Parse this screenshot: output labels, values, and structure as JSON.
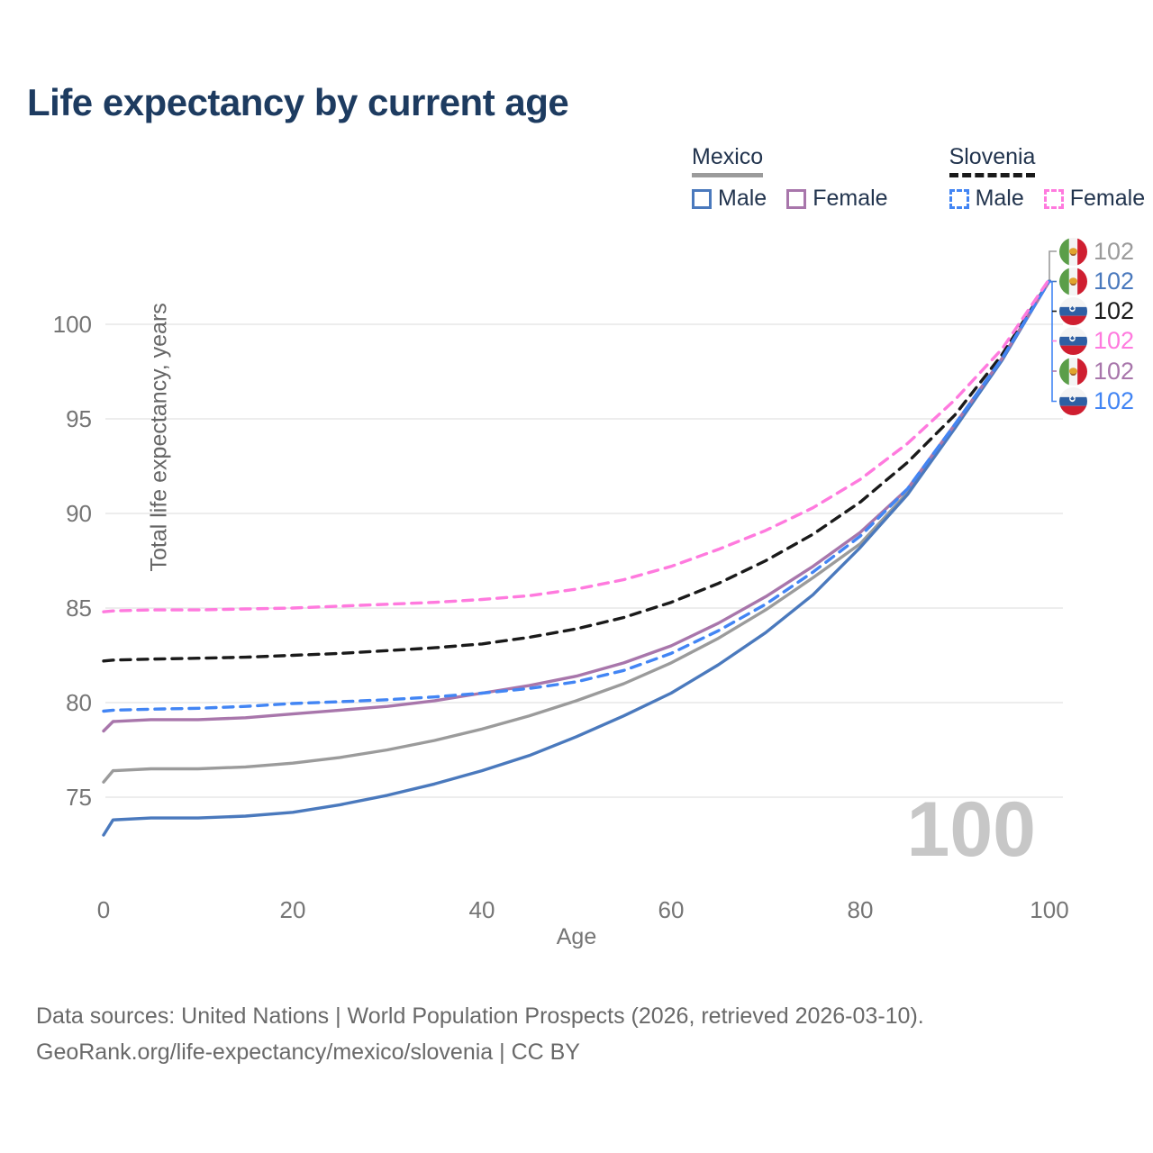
{
  "title": "Life expectancy by current age",
  "legend": {
    "groups": [
      {
        "name": "Mexico",
        "underline_style": "solid",
        "underline_color": "#9b9b9b",
        "items": [
          {
            "label": "Male",
            "color": "#4a79bd",
            "dash": false
          },
          {
            "label": "Female",
            "color": "#a876ab",
            "dash": false
          }
        ]
      },
      {
        "name": "Slovenia",
        "underline_style": "dashed",
        "underline_color": "#1a1a1a",
        "items": [
          {
            "label": "Male",
            "color": "#4285f4",
            "dash": true
          },
          {
            "label": "Female",
            "color": "#ff7ade",
            "dash": true
          }
        ]
      }
    ]
  },
  "watermark": "100",
  "footer": {
    "line1": "Data sources: United Nations | World Population Prospects (2026, retrieved 2026-03-10).",
    "line2": "GeoRank.org/life-expectancy/mexico/slovenia | CC BY"
  },
  "colors": {
    "title": "#1d3b60",
    "axis_text": "#757575",
    "grid": "#e7e7e7",
    "watermark": "#c7c7c7",
    "legend_text": "#22344e"
  },
  "chart_data": {
    "type": "line",
    "title": "Life expectancy by current age",
    "xlabel": "Age",
    "ylabel": "Total life expectancy, years",
    "xlim": [
      0,
      100
    ],
    "ylim": [
      72.5,
      103.5
    ],
    "x_ticks": [
      0,
      20,
      40,
      60,
      80,
      100
    ],
    "y_ticks": [
      75,
      80,
      85,
      90,
      95,
      100
    ],
    "grid": "horizontal",
    "legend_position": "top-right",
    "x": [
      0,
      1,
      5,
      10,
      15,
      20,
      25,
      30,
      35,
      40,
      45,
      50,
      55,
      60,
      65,
      70,
      75,
      80,
      85,
      90,
      95,
      100
    ],
    "series": [
      {
        "name": "Mexico total",
        "country": "mexico",
        "color": "#9b9b9b",
        "dash": false,
        "end_label": "102",
        "values": [
          75.8,
          76.4,
          76.5,
          76.5,
          76.6,
          76.8,
          77.1,
          77.5,
          78.0,
          78.6,
          79.3,
          80.1,
          81.0,
          82.1,
          83.4,
          84.9,
          86.6,
          88.4,
          91.1,
          94.6,
          98.2,
          102.3
        ]
      },
      {
        "name": "Mexico male",
        "country": "mexico",
        "color": "#4a79bd",
        "dash": false,
        "end_label": "102",
        "values": [
          73.0,
          73.8,
          73.9,
          73.9,
          74.0,
          74.2,
          74.6,
          75.1,
          75.7,
          76.4,
          77.2,
          78.2,
          79.3,
          80.5,
          82.0,
          83.7,
          85.7,
          88.2,
          91.0,
          94.5,
          98.1,
          102.3
        ]
      },
      {
        "name": "Slovenia total",
        "country": "slovenia",
        "color": "#1a1a1a",
        "dash": true,
        "end_label": "102",
        "values": [
          82.2,
          82.25,
          82.3,
          82.35,
          82.4,
          82.5,
          82.6,
          82.75,
          82.9,
          83.1,
          83.45,
          83.9,
          84.5,
          85.3,
          86.3,
          87.5,
          88.9,
          90.6,
          92.7,
          95.2,
          98.4,
          102.3
        ]
      },
      {
        "name": "Slovenia female",
        "country": "slovenia",
        "color": "#ff7ade",
        "dash": true,
        "end_label": "102",
        "values": [
          84.8,
          84.85,
          84.9,
          84.9,
          84.95,
          85.0,
          85.1,
          85.2,
          85.3,
          85.45,
          85.65,
          86.0,
          86.5,
          87.2,
          88.1,
          89.1,
          90.3,
          91.8,
          93.7,
          96.0,
          98.7,
          102.4
        ]
      },
      {
        "name": "Mexico female",
        "country": "mexico",
        "color": "#a876ab",
        "dash": false,
        "end_label": "102",
        "values": [
          78.5,
          79.0,
          79.1,
          79.1,
          79.2,
          79.4,
          79.6,
          79.8,
          80.1,
          80.5,
          80.9,
          81.4,
          82.1,
          83.0,
          84.2,
          85.6,
          87.2,
          89.0,
          91.3,
          94.7,
          98.2,
          102.3
        ]
      },
      {
        "name": "Slovenia male",
        "country": "slovenia",
        "color": "#4285f4",
        "dash": true,
        "end_label": "102",
        "values": [
          79.55,
          79.6,
          79.65,
          79.7,
          79.8,
          79.95,
          80.05,
          80.15,
          80.3,
          80.5,
          80.75,
          81.1,
          81.7,
          82.6,
          83.8,
          85.2,
          86.9,
          88.8,
          91.3,
          94.7,
          98.2,
          102.3
        ]
      }
    ]
  }
}
